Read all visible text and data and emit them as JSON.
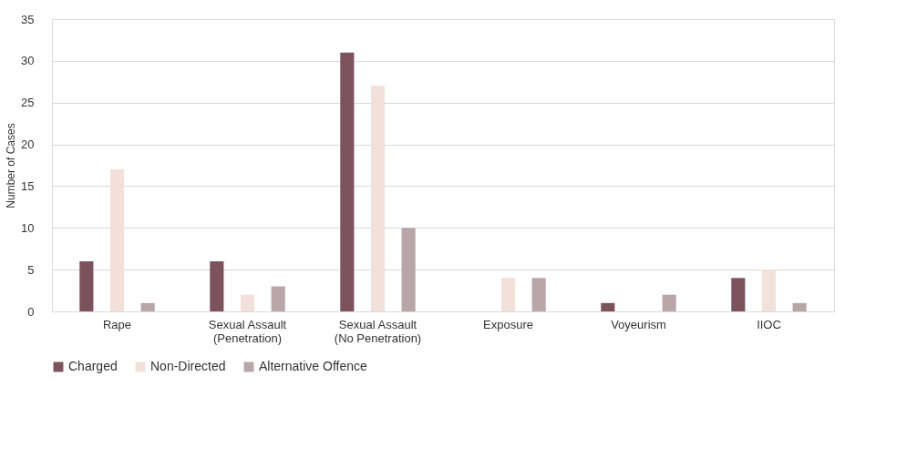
{
  "chart_data": {
    "type": "bar",
    "ylabel": "Number of Cases",
    "categories": [
      "Rape",
      "Sexual Assault\n(Penetration)",
      "Sexual Assault\n(No Penetration)",
      "Exposure",
      "Voyeurism",
      "IIOC"
    ],
    "series": [
      {
        "name": "Charged",
        "color": "#7b525e",
        "values": [
          6,
          6,
          31,
          0,
          1,
          4
        ]
      },
      {
        "name": "Non-Directed",
        "color": "#f2e0da",
        "values": [
          17,
          2,
          27,
          4,
          0,
          5
        ]
      },
      {
        "name": "Alternative Offence",
        "color": "#b9a6aa",
        "values": [
          1,
          3,
          10,
          4,
          2,
          1
        ]
      }
    ],
    "ylim": [
      0,
      35
    ],
    "yticks": [
      0,
      5,
      10,
      15,
      20,
      25,
      30,
      35
    ],
    "grid": "y",
    "legend": "bottom"
  }
}
